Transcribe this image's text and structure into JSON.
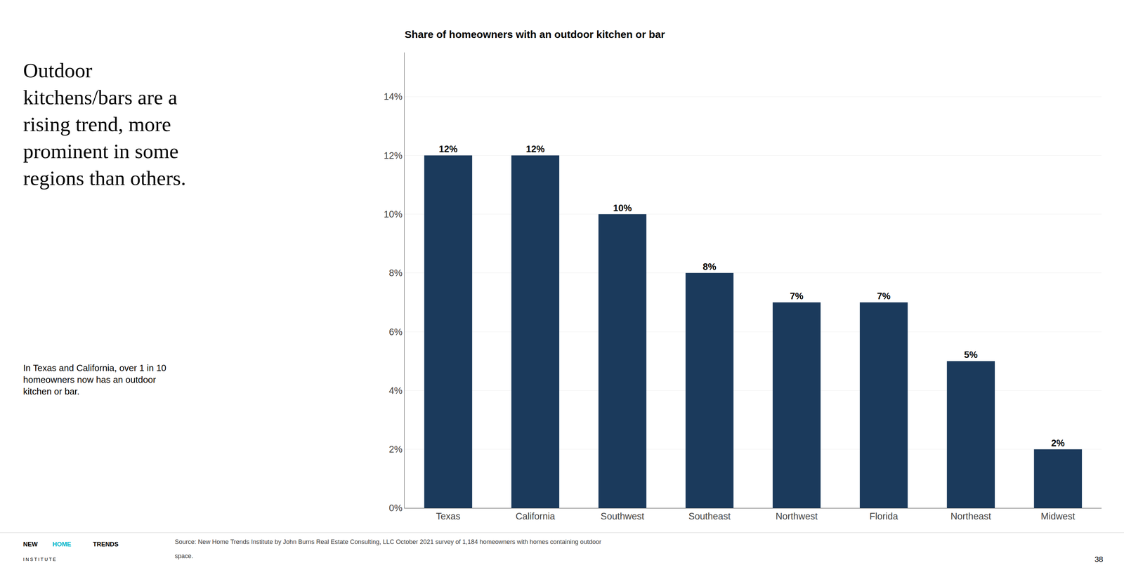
{
  "chart_data": {
    "type": "bar",
    "title": "Share of homeowners with an outdoor kitchen or bar",
    "categories": [
      "Texas",
      "California",
      "Southwest",
      "Southeast",
      "Northwest",
      "Florida",
      "Northeast",
      "Midwest"
    ],
    "values": [
      0.12,
      0.12,
      0.1,
      0.08,
      0.07,
      0.07,
      0.05,
      0.02
    ],
    "value_labels": [
      "12%",
      "12%",
      "10%",
      "8%",
      "7%",
      "7%",
      "5%",
      "2%"
    ],
    "data_labels": true,
    "color": "#1B3A5C",
    "ylim": [
      0,
      0.155
    ],
    "yticks": [
      {
        "value": 0,
        "label": "0%"
      },
      {
        "value": 0.02,
        "label": "2%"
      },
      {
        "value": 0.04,
        "label": "4%"
      },
      {
        "value": 0.06,
        "label": "6%"
      },
      {
        "value": 0.08,
        "label": "8%"
      },
      {
        "value": 0.1,
        "label": "10%"
      },
      {
        "value": 0.12,
        "label": "12%"
      },
      {
        "value": 0.14,
        "label": "14%"
      }
    ],
    "grid": true,
    "annotations": [
      "Outdoor\nkitchens/bars are a\nrising trend, more\nprominent in some\nregions than others.",
      "In Texas and California, over 1 in 10\nhomeowners now has an outdoor\nkitchen or bar.",
      "NEW",
      "HOME",
      "TRENDS",
      "I N S T I T U T E",
      "Source: New Home Trends Institute by John Burns Real Estate Consulting, LLC October 2021 survey of 1,184 homeowners with homes containing outdoor",
      "space.",
      "38"
    ]
  }
}
